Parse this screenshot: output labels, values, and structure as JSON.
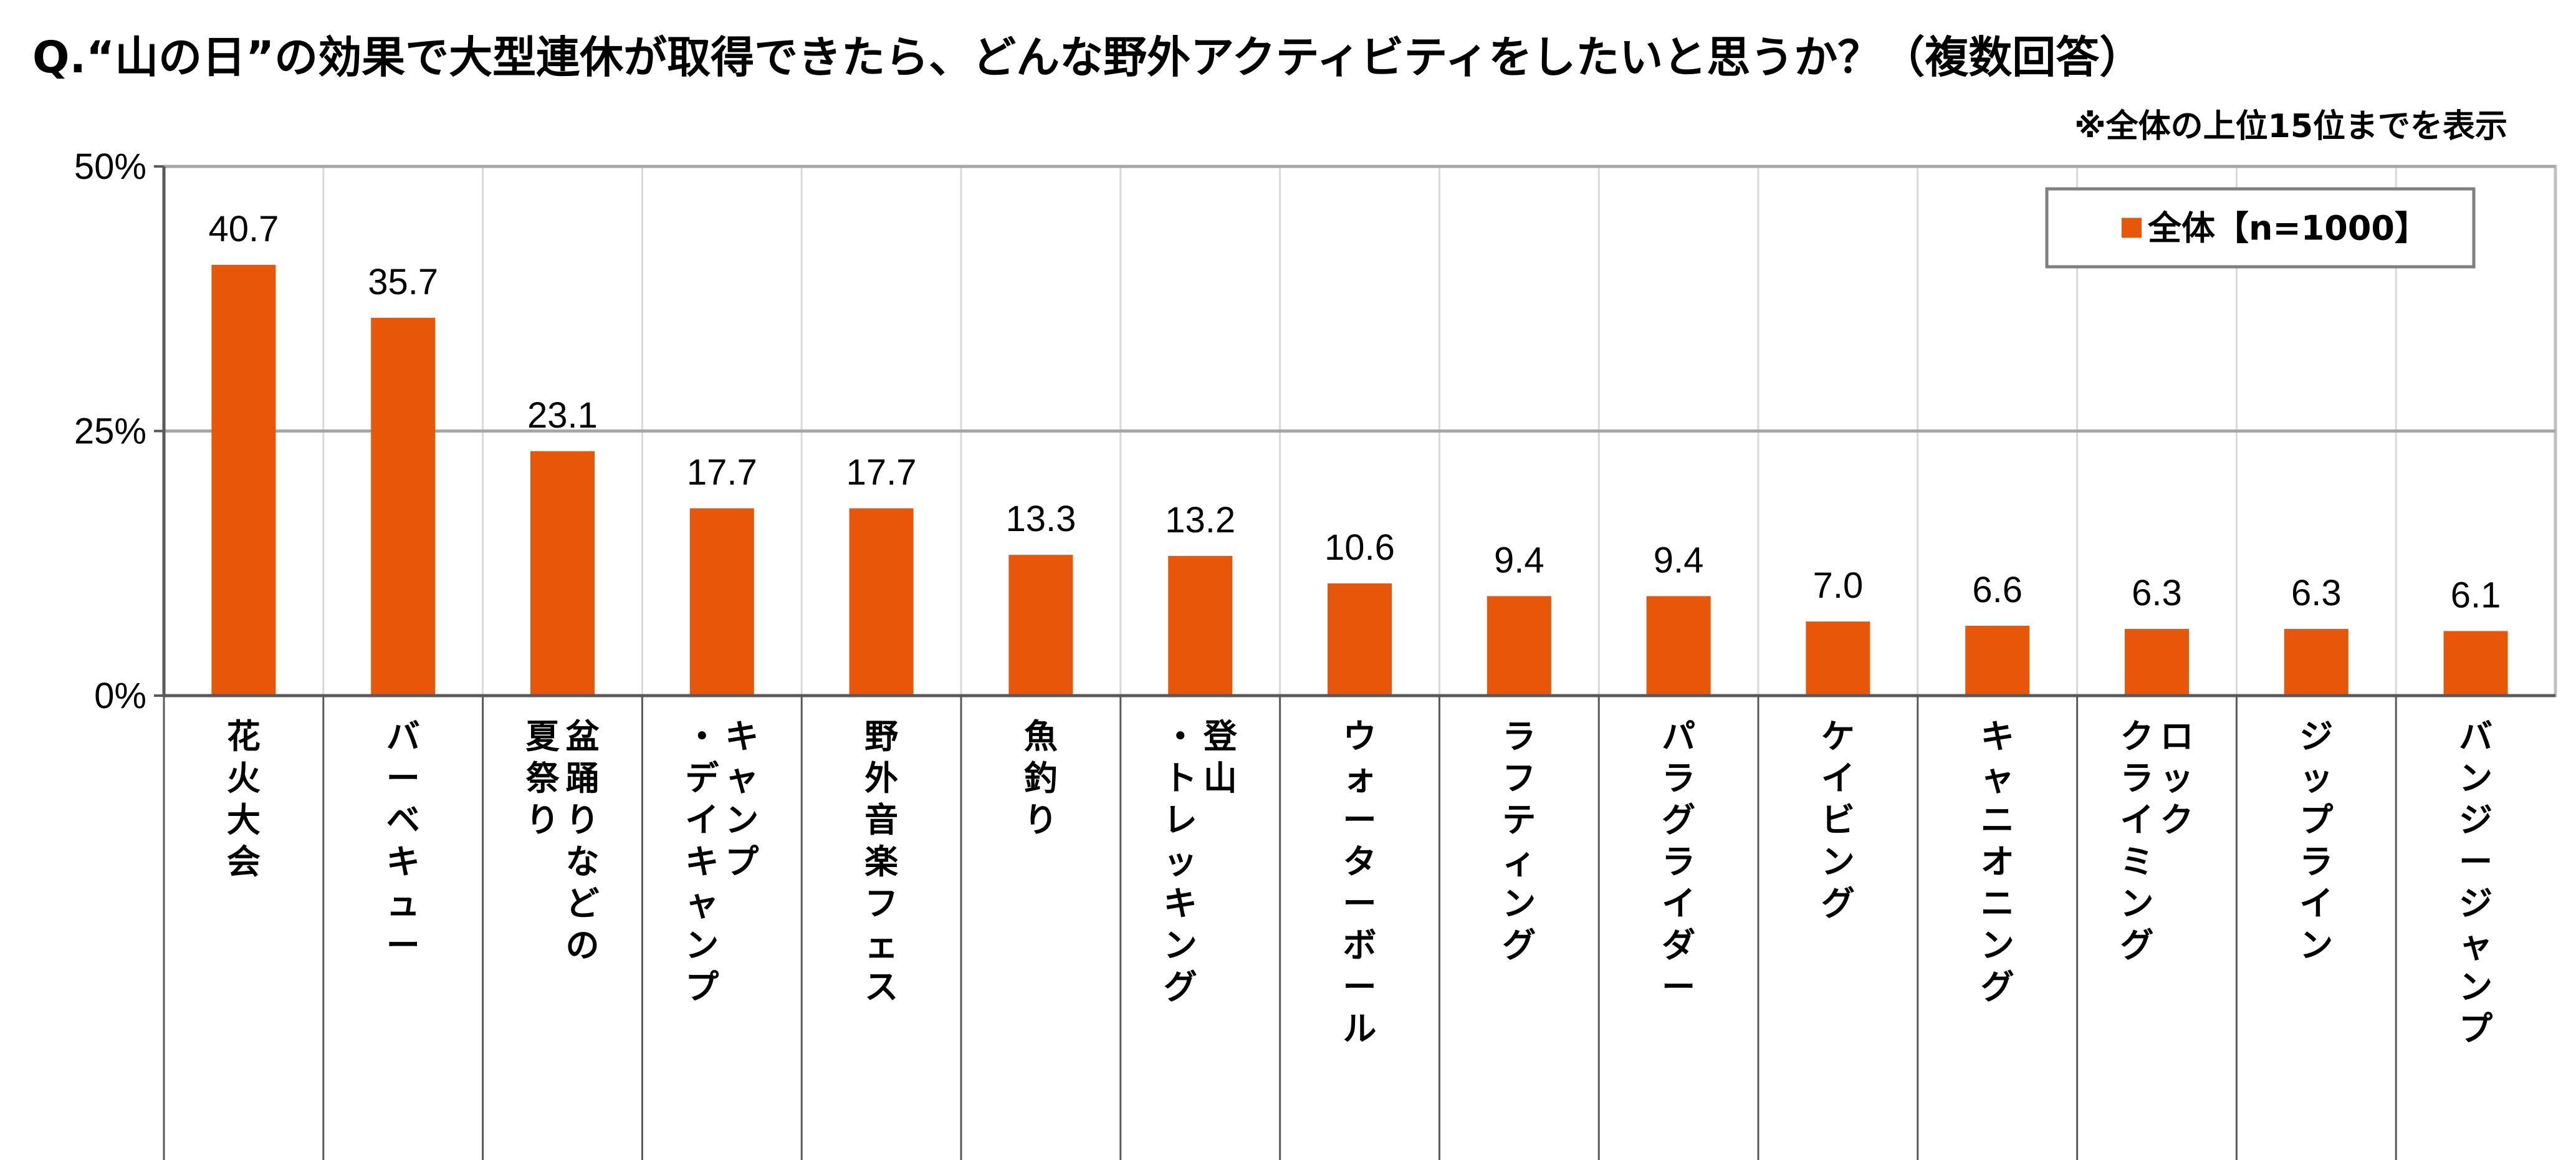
{
  "title": "Q.“山の日”の効果で大型連休が取得できたら、どんな野外アクティビティをしたいと思うか？（複数回答）",
  "note": "※全体の上位15位までを表示",
  "colors": {
    "bar": "#E8560A",
    "grid": "#A6A6A6",
    "frame": "#BFBFBF",
    "legend_border": "#7F7F7F"
  },
  "chart_data": {
    "type": "bar",
    "ylim": [
      0,
      50
    ],
    "yticks": [
      {
        "value": 0,
        "label": "0%"
      },
      {
        "value": 25,
        "label": "25%"
      },
      {
        "value": 50,
        "label": "50%"
      }
    ],
    "grid": true,
    "legend_position": "top-right",
    "series": [
      {
        "name": "全体【n=1000】",
        "values": [
          40.7,
          35.7,
          23.1,
          17.7,
          17.7,
          13.3,
          13.2,
          10.6,
          9.4,
          9.4,
          7.0,
          6.6,
          6.3,
          6.3,
          6.1
        ],
        "labels": [
          "40.7",
          "35.7",
          "23.1",
          "17.7",
          "17.7",
          "13.3",
          "13.2",
          "10.6",
          "9.4",
          "9.4",
          "7.0",
          "6.6",
          "6.3",
          "6.3",
          "6.1"
        ]
      }
    ],
    "categories": [
      "花火大会",
      "バーベキュー",
      "盆踊りなどの夏祭り",
      "キャンプ・デイキャンプ",
      "野外音楽フェス",
      "魚釣り",
      "登山・トレッキング",
      "ウォーターボール",
      "ラフティング",
      "パラグライダー",
      "ケイビング",
      "キャニオニング",
      "ロッククライミング",
      "ジップライン",
      "バンジージャンプ"
    ],
    "category_columns": [
      [
        [
          "花",
          "火",
          "大",
          "会"
        ]
      ],
      [
        [
          "バ",
          "ー",
          "ベ",
          "キ",
          "ュ",
          "ー"
        ]
      ],
      [
        [
          "盆",
          "踊",
          "り",
          "な",
          "ど",
          "の"
        ],
        [
          "夏",
          "祭",
          "り"
        ]
      ],
      [
        [
          "キ",
          "ャ",
          "ン",
          "プ"
        ],
        [
          "・",
          "デ",
          "イ",
          "キ",
          "ャ",
          "ン",
          "プ"
        ]
      ],
      [
        [
          "野",
          "外",
          "音",
          "楽",
          "フ",
          "ェ",
          "ス"
        ]
      ],
      [
        [
          "魚",
          "釣",
          "り"
        ]
      ],
      [
        [
          "登",
          "山"
        ],
        [
          "・",
          "ト",
          "レ",
          "ッ",
          "キ",
          "ン",
          "グ"
        ]
      ],
      [
        [
          "ウ",
          "ォ",
          "ー",
          "タ",
          "ー",
          "ボ",
          "ー",
          "ル"
        ]
      ],
      [
        [
          "ラ",
          "フ",
          "テ",
          "ィ",
          "ン",
          "グ"
        ]
      ],
      [
        [
          "パ",
          "ラ",
          "グ",
          "ラ",
          "イ",
          "ダ",
          "ー"
        ]
      ],
      [
        [
          "ケ",
          "イ",
          "ビ",
          "ン",
          "グ"
        ]
      ],
      [
        [
          "キ",
          "ャ",
          "ニ",
          "オ",
          "ニ",
          "ン",
          "グ"
        ]
      ],
      [
        [
          "ロ",
          "ッ",
          "ク"
        ],
        [
          "ク",
          "ラ",
          "イ",
          "ミ",
          "ン",
          "グ"
        ]
      ],
      [
        [
          "ジ",
          "ッ",
          "プ",
          "ラ",
          "イ",
          "ン"
        ]
      ],
      [
        [
          "バ",
          "ン",
          "ジ",
          "ー",
          "ジ",
          "ャ",
          "ン",
          "プ"
        ]
      ]
    ]
  }
}
